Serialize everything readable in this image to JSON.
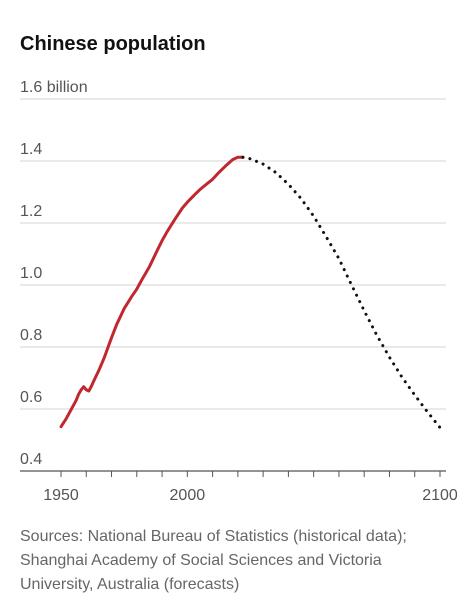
{
  "chart_data": {
    "type": "line",
    "title": "Chinese population",
    "xlabel": "",
    "ylabel": "",
    "xlim": [
      1950,
      2100
    ],
    "ylim": [
      0.4,
      1.6
    ],
    "y_ticks": [
      {
        "value": 1.6,
        "label": "1.6 billion"
      },
      {
        "value": 1.4,
        "label": "1.4"
      },
      {
        "value": 1.2,
        "label": "1.2"
      },
      {
        "value": 1.0,
        "label": "1.0"
      },
      {
        "value": 0.8,
        "label": "0.8"
      },
      {
        "value": 0.6,
        "label": "0.6"
      },
      {
        "value": 0.4,
        "label": "0.4"
      }
    ],
    "x_tick_labels": [
      {
        "value": 1950,
        "label": "1950"
      },
      {
        "value": 2000,
        "label": "2000"
      },
      {
        "value": 2100,
        "label": "2100"
      }
    ],
    "x_minor_ticks": [
      1950,
      1960,
      1970,
      1980,
      1990,
      2000,
      2010,
      2020,
      2030,
      2040,
      2050,
      2060,
      2070,
      2080,
      2090,
      2100
    ],
    "grid": "horizontal",
    "series": [
      {
        "style": "solid",
        "color": "#c0282f",
        "points": [
          [
            1950,
            0.543
          ],
          [
            1952,
            0.568
          ],
          [
            1954,
            0.598
          ],
          [
            1956,
            0.628
          ],
          [
            1957,
            0.648
          ],
          [
            1958,
            0.662
          ],
          [
            1959,
            0.672
          ],
          [
            1960,
            0.662
          ],
          [
            1961,
            0.658
          ],
          [
            1962,
            0.673
          ],
          [
            1963,
            0.691
          ],
          [
            1965,
            0.725
          ],
          [
            1967,
            0.763
          ],
          [
            1970,
            0.83
          ],
          [
            1972,
            0.872
          ],
          [
            1975,
            0.924
          ],
          [
            1978,
            0.963
          ],
          [
            1980,
            0.987
          ],
          [
            1982,
            1.017
          ],
          [
            1985,
            1.059
          ],
          [
            1988,
            1.11
          ],
          [
            1990,
            1.143
          ],
          [
            1992,
            1.172
          ],
          [
            1995,
            1.211
          ],
          [
            1998,
            1.248
          ],
          [
            2000,
            1.267
          ],
          [
            2003,
            1.292
          ],
          [
            2005,
            1.308
          ],
          [
            2008,
            1.328
          ],
          [
            2010,
            1.341
          ],
          [
            2012,
            1.359
          ],
          [
            2015,
            1.383
          ],
          [
            2018,
            1.405
          ],
          [
            2020,
            1.412
          ],
          [
            2022,
            1.412
          ]
        ]
      },
      {
        "style": "dotted",
        "color": "#111111",
        "points": [
          [
            2022,
            1.412
          ],
          [
            2025,
            1.407
          ],
          [
            2030,
            1.39
          ],
          [
            2035,
            1.363
          ],
          [
            2040,
            1.325
          ],
          [
            2045,
            1.279
          ],
          [
            2050,
            1.222
          ],
          [
            2055,
            1.155
          ],
          [
            2060,
            1.085
          ],
          [
            2065,
            1.0
          ],
          [
            2070,
            0.917
          ],
          [
            2075,
            0.838
          ],
          [
            2080,
            0.767
          ],
          [
            2085,
            0.702
          ],
          [
            2090,
            0.645
          ],
          [
            2095,
            0.591
          ],
          [
            2100,
            0.54
          ]
        ]
      }
    ]
  },
  "source_text": "Sources: National Bureau of Statistics (historical data); Shanghai Academy of Social Sciences and Victoria University, Australia (forecasts)"
}
